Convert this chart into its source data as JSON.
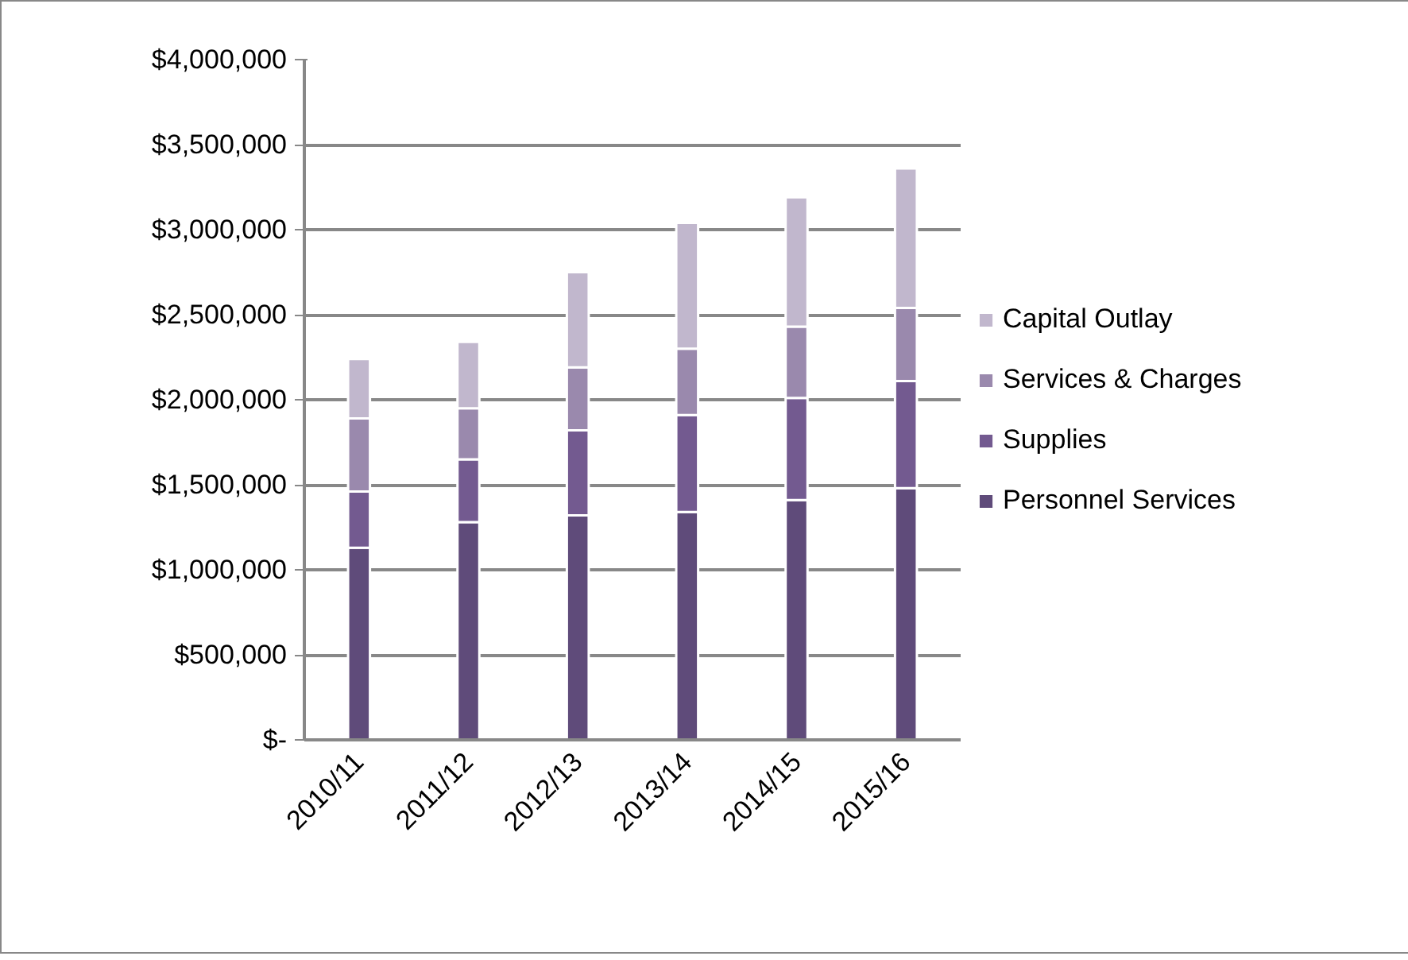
{
  "chart_data": {
    "type": "bar",
    "stacked": true,
    "categories": [
      "2010/11",
      "2011/12",
      "2012/13",
      "2013/14",
      "2014/15",
      "2015/16"
    ],
    "series": [
      {
        "name": "Personnel Services",
        "color": "#5f4b7a",
        "values": [
          1130000,
          1280000,
          1320000,
          1340000,
          1410000,
          1480000
        ]
      },
      {
        "name": "Supplies",
        "color": "#735a90",
        "values": [
          330000,
          370000,
          500000,
          570000,
          600000,
          630000
        ]
      },
      {
        "name": "Services & Charges",
        "color": "#9a89ad",
        "values": [
          430000,
          300000,
          370000,
          390000,
          420000,
          430000
        ]
      },
      {
        "name": "Capital Outlay",
        "color": "#c1b7cd",
        "values": [
          350000,
          390000,
          560000,
          740000,
          760000,
          820000
        ]
      }
    ],
    "ylim": [
      0,
      4000000
    ],
    "yticks": [
      {
        "value": 0,
        "label": "$-"
      },
      {
        "value": 500000,
        "label": "$500,000"
      },
      {
        "value": 1000000,
        "label": "$1,000,000"
      },
      {
        "value": 1500000,
        "label": "$1,500,000"
      },
      {
        "value": 2000000,
        "label": "$2,000,000"
      },
      {
        "value": 2500000,
        "label": "$2,500,000"
      },
      {
        "value": 3000000,
        "label": "$3,000,000"
      },
      {
        "value": 3500000,
        "label": "$3,500,000"
      },
      {
        "value": 4000000,
        "label": "$4,000,000"
      }
    ],
    "grid": "y",
    "legend": "right"
  }
}
